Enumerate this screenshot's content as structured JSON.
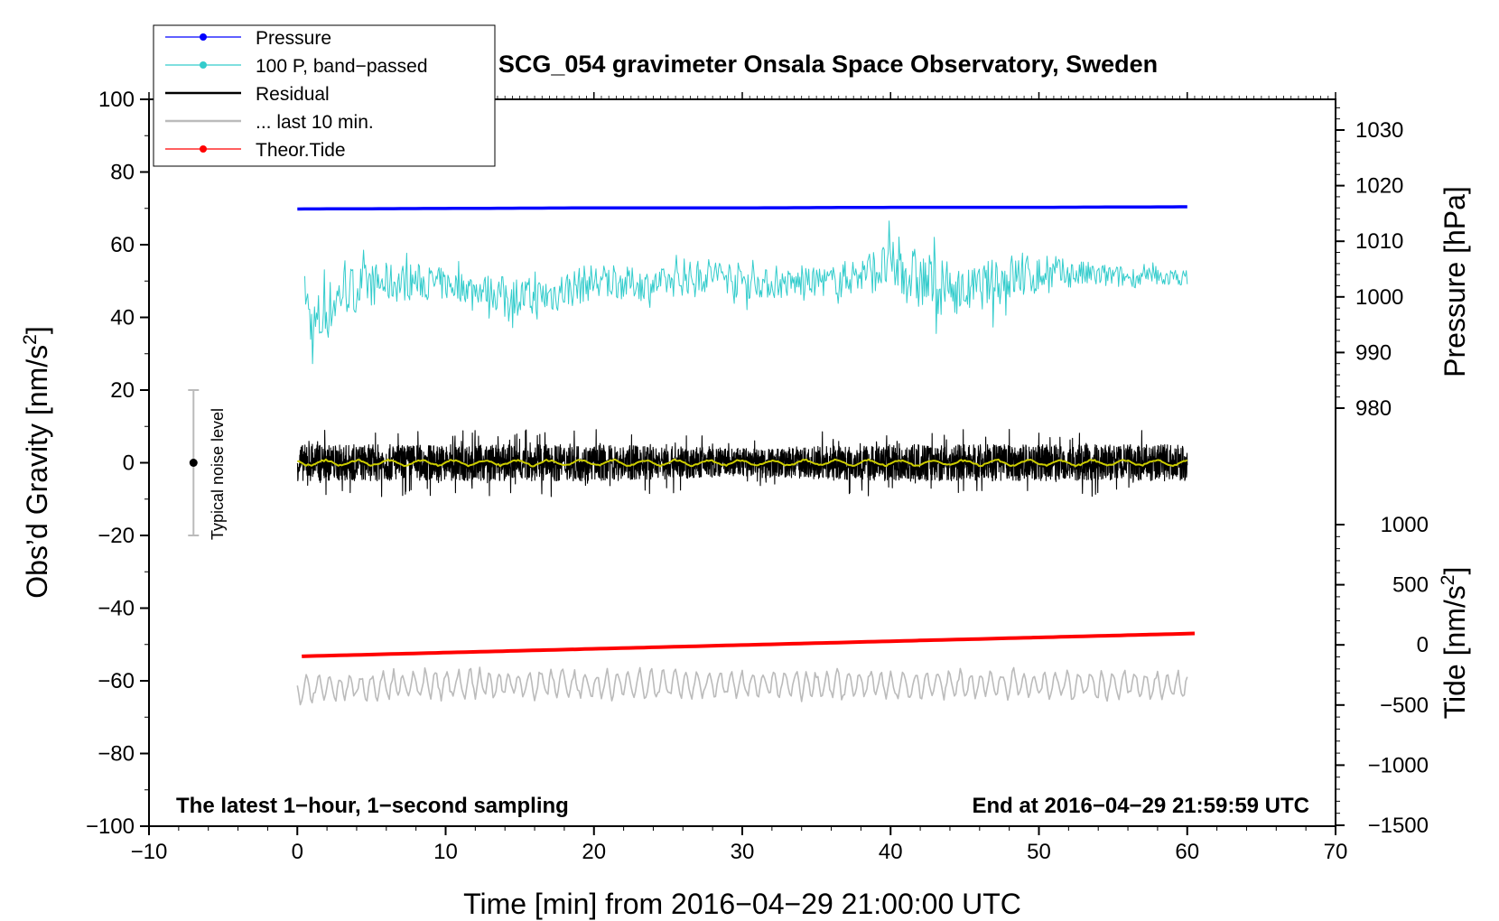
{
  "chart_data": {
    "type": "line",
    "title": "SCG_054 gravimeter Onsala Space Observatory, Sweden",
    "xlabel": "Time [min] from 2016−04−29 21:00:00 UTC",
    "ylabel_left": "Obs’d Gravity [nm/s",
    "ylabel_left_sup": "2",
    "ylabel_left_end": "]",
    "ylabel_right_top": "Pressure [hPa]",
    "ylabel_right_bottom": "Tide [nm/s",
    "ylabel_right_bottom_sup": "2",
    "ylabel_right_bottom_end": "]",
    "xlim": [
      -10,
      70
    ],
    "ylim": [
      -100,
      100
    ],
    "pressure_axis_range": [
      980,
      1030
    ],
    "tide_axis_range": [
      -1500,
      1000
    ],
    "grid": false,
    "legend_position": "top-left",
    "notes": {
      "left": "The latest 1−hour, 1−second sampling",
      "right": "End at 2016−04−29 21:59:59 UTC"
    },
    "noise_bar": {
      "label": "Typical noise level",
      "x": -7,
      "center": 0,
      "low": -20,
      "high": 20
    },
    "x_ticks": [
      {
        "v": -10,
        "label": "−10"
      },
      {
        "v": 0,
        "label": "0"
      },
      {
        "v": 10,
        "label": "10"
      },
      {
        "v": 20,
        "label": "20"
      },
      {
        "v": 30,
        "label": "30"
      },
      {
        "v": 40,
        "label": "40"
      },
      {
        "v": 50,
        "label": "50"
      },
      {
        "v": 60,
        "label": "60"
      },
      {
        "v": 70,
        "label": "70"
      }
    ],
    "y_ticks": [
      {
        "v": 100,
        "label": "100"
      },
      {
        "v": 80,
        "label": "80"
      },
      {
        "v": 60,
        "label": "60"
      },
      {
        "v": 40,
        "label": "40"
      },
      {
        "v": 20,
        "label": "20"
      },
      {
        "v": 0,
        "label": "0"
      },
      {
        "v": -20,
        "label": "−20"
      },
      {
        "v": -40,
        "label": "−40"
      },
      {
        "v": -60,
        "label": "−60"
      },
      {
        "v": -80,
        "label": "−80"
      },
      {
        "v": -100,
        "label": "−100"
      }
    ],
    "pressure_ticks": [
      {
        "v": 1030,
        "label": "1030"
      },
      {
        "v": 1020,
        "label": "1020"
      },
      {
        "v": 1010,
        "label": "1010"
      },
      {
        "v": 1000,
        "label": "1000"
      },
      {
        "v": 990,
        "label": "990"
      },
      {
        "v": 980,
        "label": "980"
      }
    ],
    "tide_ticks": [
      {
        "v": 1000,
        "label": "1000"
      },
      {
        "v": 500,
        "label": "500"
      },
      {
        "v": 0,
        "label": "0"
      },
      {
        "v": -500,
        "label": "−500"
      },
      {
        "v": -1000,
        "label": "−1000"
      },
      {
        "v": -1500,
        "label": "−1500"
      }
    ],
    "legend": [
      {
        "label": "Pressure",
        "color": "#0000ff",
        "marker": true
      },
      {
        "label": "100 P, band−passed",
        "color": "#33cccc",
        "marker": true
      },
      {
        "label": "Residual",
        "color": "#000000",
        "marker": false
      },
      {
        "label": "... last 10 min.",
        "color": "#bbbbbb",
        "marker": false
      },
      {
        "label": "Theor.Tide",
        "color": "#ff0000",
        "marker": true
      }
    ],
    "series": [
      {
        "name": "Pressure",
        "axis": "pressure",
        "color": "#0000ff",
        "x": [
          0,
          10,
          20,
          30,
          40,
          50,
          60
        ],
        "y": [
          1015.8,
          1015.9,
          1016.0,
          1016.0,
          1016.1,
          1016.1,
          1016.2
        ]
      },
      {
        "name": "100 P, band−passed",
        "axis": "left",
        "color": "#33cccc",
        "x": [
          0.5,
          1,
          3,
          5,
          8,
          12,
          16,
          20,
          24,
          28,
          32,
          36,
          40,
          42,
          45,
          48,
          52,
          56,
          60
        ],
        "y": [
          48,
          36,
          47,
          49,
          50,
          48,
          45,
          50,
          49,
          52,
          49,
          50,
          54,
          50,
          47,
          51,
          52,
          51,
          51
        ],
        "amplitude": [
          4,
          10,
          7,
          6,
          5,
          4,
          6,
          5,
          4,
          5,
          4,
          4,
          7,
          9,
          6,
          7,
          4,
          3,
          2
        ]
      },
      {
        "name": "Residual",
        "axis": "left",
        "color": "#000000",
        "x": [
          0,
          10,
          20,
          30,
          40,
          50,
          60
        ],
        "y": [
          0,
          0,
          0,
          0,
          0,
          0,
          0
        ],
        "amplitude": [
          5,
          5,
          5,
          4,
          5,
          5,
          5
        ]
      },
      {
        "name": "Residual smoothed",
        "axis": "left",
        "color": "#cccc00",
        "x": [
          0,
          10,
          20,
          30,
          40,
          50,
          60
        ],
        "y": [
          0,
          0,
          0,
          0,
          0,
          0,
          0
        ],
        "amplitude": [
          1,
          1,
          1,
          1,
          1,
          1,
          1
        ]
      },
      {
        "name": "... last 10 min.",
        "axis": "left",
        "color": "#bbbbbb",
        "x": [
          0,
          10,
          20,
          30,
          40,
          50,
          60
        ],
        "y": [
          -62,
          -61,
          -61,
          -61,
          -61,
          -61,
          -61
        ],
        "amplitude": [
          4,
          4,
          4,
          4,
          4,
          4,
          4
        ]
      },
      {
        "name": "Theor.Tide",
        "axis": "tide",
        "color": "#ff0000",
        "x": [
          0.3,
          60.5
        ],
        "y": [
          -95,
          95
        ]
      }
    ]
  }
}
